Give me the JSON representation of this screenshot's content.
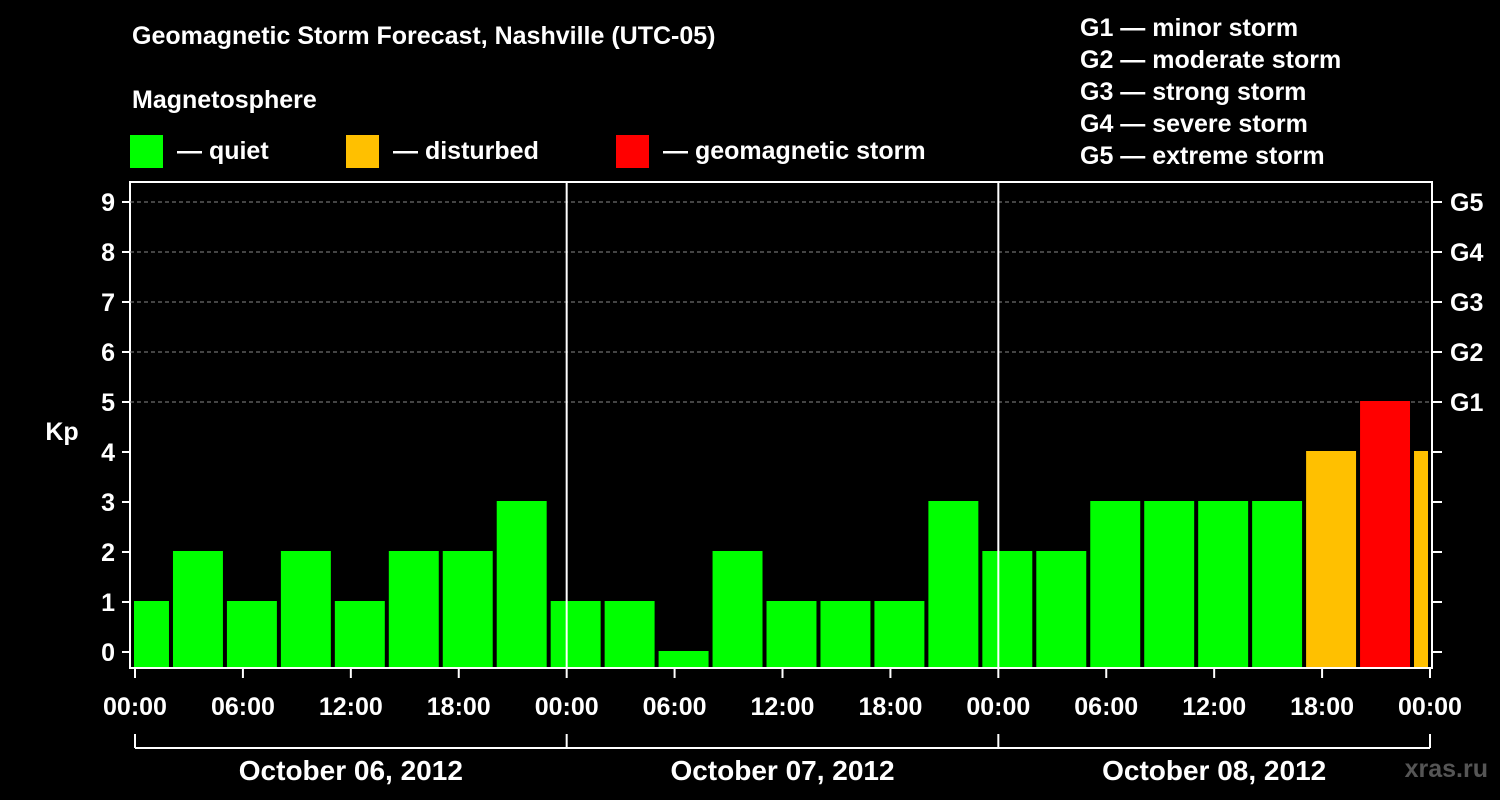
{
  "title": "Geomagnetic Storm Forecast, Nashville (UTC-05)",
  "subtitle": "Magnetosphere",
  "legend": [
    {
      "label": "— quiet",
      "color": "#00ff00"
    },
    {
      "label": "— disturbed",
      "color": "#ffc000"
    },
    {
      "label": "— geomagnetic storm",
      "color": "#ff0000"
    }
  ],
  "storm_scale": [
    "G1 — minor storm",
    "G2 — moderate storm",
    "G3 — strong storm",
    "G4 — severe storm",
    "G5 — extreme storm"
  ],
  "watermark": "xras.ru",
  "chart_data": {
    "type": "bar",
    "ylabel": "Kp",
    "ylim": [
      0,
      9
    ],
    "y_ticks": [
      0,
      1,
      2,
      3,
      4,
      5,
      6,
      7,
      8,
      9
    ],
    "right_ticks": [
      {
        "value": 5,
        "label": "G1"
      },
      {
        "value": 6,
        "label": "G2"
      },
      {
        "value": 7,
        "label": "G3"
      },
      {
        "value": 8,
        "label": "G4"
      },
      {
        "value": 9,
        "label": "G5"
      }
    ],
    "x_ticks": [
      "00:00",
      "06:00",
      "12:00",
      "18:00",
      "00:00",
      "06:00",
      "12:00",
      "18:00",
      "00:00",
      "06:00",
      "12:00",
      "18:00",
      "00:00"
    ],
    "days": [
      "October 06, 2012",
      "October 07, 2012",
      "October 08, 2012"
    ],
    "colors": {
      "quiet": "#00ff00",
      "disturbed": "#ffc000",
      "storm": "#ff0000"
    },
    "bars": [
      {
        "start_hour": -1,
        "value": 1
      },
      {
        "start_hour": 2,
        "value": 2
      },
      {
        "start_hour": 5,
        "value": 1
      },
      {
        "start_hour": 8,
        "value": 2
      },
      {
        "start_hour": 11,
        "value": 1
      },
      {
        "start_hour": 14,
        "value": 2
      },
      {
        "start_hour": 17,
        "value": 2
      },
      {
        "start_hour": 20,
        "value": 3
      },
      {
        "start_hour": 23,
        "value": 1
      },
      {
        "start_hour": 26,
        "value": 1
      },
      {
        "start_hour": 29,
        "value": 0
      },
      {
        "start_hour": 32,
        "value": 2
      },
      {
        "start_hour": 35,
        "value": 1
      },
      {
        "start_hour": 38,
        "value": 1
      },
      {
        "start_hour": 41,
        "value": 1
      },
      {
        "start_hour": 44,
        "value": 3
      },
      {
        "start_hour": 47,
        "value": 2
      },
      {
        "start_hour": 50,
        "value": 2
      },
      {
        "start_hour": 53,
        "value": 3
      },
      {
        "start_hour": 56,
        "value": 3
      },
      {
        "start_hour": 59,
        "value": 3
      },
      {
        "start_hour": 62,
        "value": 3
      },
      {
        "start_hour": 65,
        "value": 4
      },
      {
        "start_hour": 68,
        "value": 5
      },
      {
        "start_hour": 71,
        "value": 4
      }
    ]
  }
}
